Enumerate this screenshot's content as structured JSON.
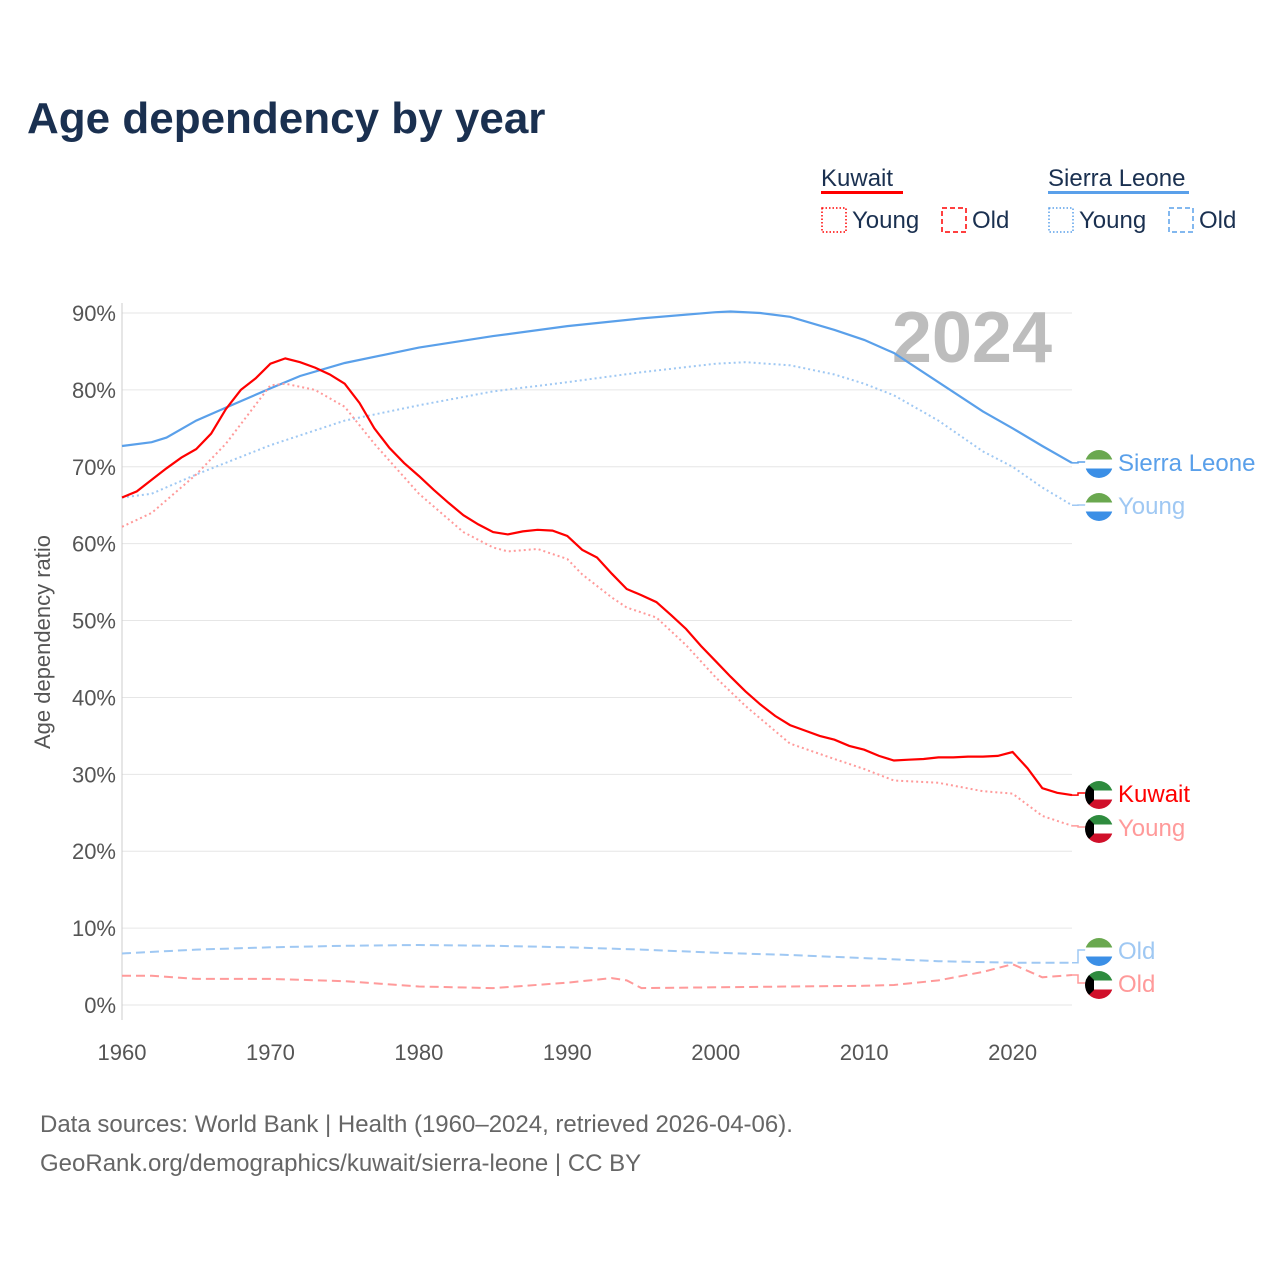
{
  "chart_data": {
    "type": "line",
    "title": "Age dependency by year",
    "ylabel": "Age dependency ratio",
    "xlabel": "",
    "xlim": [
      1960,
      2024
    ],
    "ylim": [
      0,
      90
    ],
    "x_ticks": [
      "1960",
      "1970",
      "1980",
      "1990",
      "2000",
      "2010",
      "2020"
    ],
    "y_ticks": [
      "0%",
      "10%",
      "20%",
      "30%",
      "40%",
      "50%",
      "60%",
      "70%",
      "80%",
      "90%"
    ],
    "year_label": "2024",
    "legend": {
      "groups": [
        {
          "name": "Kuwait",
          "color": "#ff0000",
          "items": [
            "Young",
            "Old"
          ]
        },
        {
          "name": "Sierra Leone",
          "color": "#5aa0ea",
          "items": [
            "Young",
            "Old"
          ]
        }
      ],
      "placement": "top-right"
    },
    "series": [
      {
        "name": "Sierra Leone",
        "label": "Sierra Leone",
        "kind": "total",
        "country": "SL",
        "color": "#5aa0ea",
        "style": "solid",
        "x": [
          1960,
          1962,
          1963,
          1965,
          1967,
          1970,
          1972,
          1975,
          1980,
          1985,
          1990,
          1995,
          2000,
          2001,
          2003,
          2005,
          2008,
          2010,
          2012,
          2015,
          2018,
          2020,
          2022,
          2024
        ],
        "y": [
          72.7,
          73.2,
          73.8,
          76,
          77.7,
          80.2,
          81.8,
          83.5,
          85.5,
          87,
          88.3,
          89.3,
          90.1,
          90.2,
          90,
          89.5,
          87.8,
          86.5,
          84.8,
          81,
          77.2,
          75,
          72.7,
          70.5
        ]
      },
      {
        "name": "Sierra Leone Young",
        "label": "Young",
        "kind": "young",
        "country": "SL",
        "color": "#9fc8f3",
        "style": "dotted",
        "x": [
          1960,
          1962,
          1965,
          1970,
          1975,
          1980,
          1985,
          1990,
          1995,
          2000,
          2002,
          2005,
          2008,
          2010,
          2012,
          2015,
          2018,
          2020,
          2022,
          2024
        ],
        "y": [
          66,
          66.5,
          69,
          72.8,
          76,
          78,
          79.8,
          81,
          82.3,
          83.4,
          83.6,
          83.2,
          82,
          80.8,
          79.3,
          76,
          72,
          70,
          67.3,
          65
        ]
      },
      {
        "name": "Sierra Leone Old",
        "label": "Old",
        "kind": "old",
        "country": "SL",
        "color": "#9fc8f3",
        "style": "dashed",
        "x": [
          1960,
          1965,
          1970,
          1975,
          1980,
          1985,
          1990,
          1995,
          2000,
          2005,
          2010,
          2015,
          2020,
          2024
        ],
        "y": [
          6.7,
          7.2,
          7.5,
          7.7,
          7.8,
          7.7,
          7.5,
          7.2,
          6.8,
          6.5,
          6.1,
          5.7,
          5.5,
          5.5
        ]
      },
      {
        "name": "Kuwait",
        "label": "Kuwait",
        "kind": "total",
        "country": "KW",
        "color": "#ff0000",
        "style": "solid",
        "x": [
          1960,
          1961,
          1962,
          1963,
          1964,
          1965,
          1966,
          1967,
          1968,
          1969,
          1970,
          1971,
          1972,
          1973,
          1974,
          1975,
          1976,
          1977,
          1978,
          1979,
          1980,
          1981,
          1982,
          1983,
          1984,
          1985,
          1986,
          1987,
          1988,
          1989,
          1990,
          1991,
          1992,
          1993,
          1994,
          1995,
          1996,
          1997,
          1998,
          1999,
          2000,
          2001,
          2002,
          2003,
          2004,
          2005,
          2006,
          2007,
          2008,
          2009,
          2010,
          2011,
          2012,
          2013,
          2014,
          2015,
          2016,
          2017,
          2018,
          2019,
          2020,
          2021,
          2022,
          2023,
          2024
        ],
        "y": [
          66,
          66.8,
          68.3,
          69.8,
          71.2,
          72.3,
          74.3,
          77.5,
          80,
          81.5,
          83.4,
          84.1,
          83.6,
          82.9,
          82,
          80.8,
          78.3,
          75,
          72.5,
          70.5,
          68.8,
          67,
          65.3,
          63.7,
          62.5,
          61.5,
          61.2,
          61.6,
          61.8,
          61.7,
          61,
          59.2,
          58.2,
          56.1,
          54.1,
          53.3,
          52.4,
          50.7,
          48.9,
          46.7,
          44.7,
          42.7,
          40.8,
          39.1,
          37.6,
          36.4,
          35.7,
          35,
          34.5,
          33.7,
          33.2,
          32.4,
          31.8,
          31.9,
          32,
          32.2,
          32.2,
          32.3,
          32.3,
          32.4,
          32.9,
          30.8,
          28.2,
          27.6,
          27.3
        ]
      },
      {
        "name": "Kuwait Young",
        "label": "Young",
        "kind": "young",
        "country": "KW",
        "color": "#ff9a9a",
        "style": "dotted",
        "x": [
          1960,
          1962,
          1965,
          1967,
          1970,
          1971,
          1973,
          1975,
          1977,
          1980,
          1983,
          1985,
          1986,
          1988,
          1990,
          1991,
          1993,
          1994,
          1996,
          1998,
          2000,
          2002,
          2005,
          2008,
          2010,
          2012,
          2015,
          2018,
          2020,
          2022,
          2024
        ],
        "y": [
          62.2,
          64,
          69,
          73,
          80.6,
          80.8,
          80,
          77.8,
          73,
          66.5,
          61.5,
          59.5,
          59,
          59.3,
          58,
          56,
          53,
          51.7,
          50.4,
          46.8,
          42.6,
          38.9,
          34,
          32,
          30.7,
          29.2,
          28.9,
          27.8,
          27.5,
          24.6,
          23.3
        ]
      },
      {
        "name": "Kuwait Old",
        "label": "Old",
        "kind": "old",
        "country": "KW",
        "color": "#ff9a9a",
        "style": "dashed",
        "x": [
          1960,
          1962,
          1965,
          1970,
          1975,
          1980,
          1985,
          1990,
          1993,
          1994,
          1995,
          2000,
          2005,
          2010,
          2012,
          2015,
          2018,
          2020,
          2022,
          2024
        ],
        "y": [
          3.8,
          3.8,
          3.4,
          3.4,
          3.1,
          2.4,
          2.2,
          2.9,
          3.5,
          3.2,
          2.2,
          2.3,
          2.4,
          2.5,
          2.6,
          3.2,
          4.3,
          5.3,
          3.6,
          3.9
        ]
      }
    ]
  },
  "footer": {
    "line1": "Data sources: World Bank | Health (1960–2024, retrieved 2026-04-06).",
    "line2": "GeoRank.org/demographics/kuwait/sierra-leone | CC BY"
  }
}
